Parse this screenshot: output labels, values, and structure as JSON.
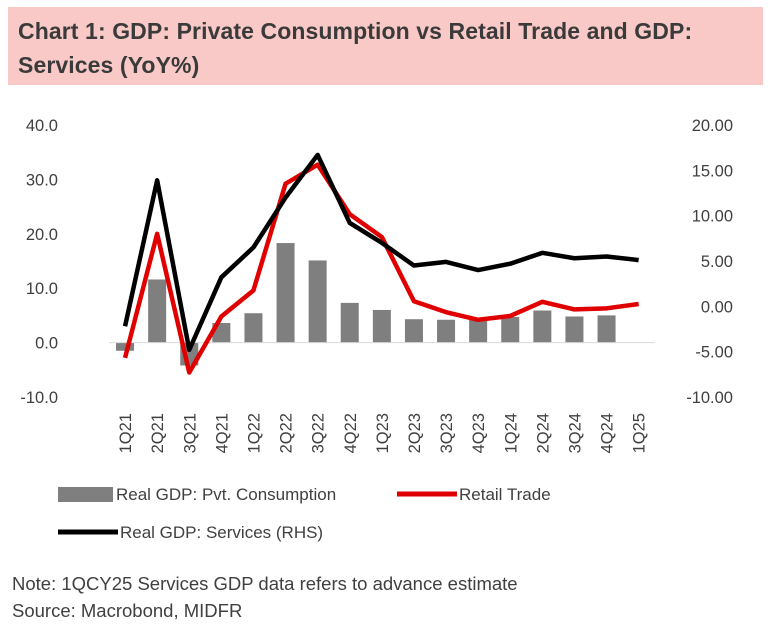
{
  "title": "Chart 1: GDP: Private Consumption vs Retail Trade and GDP: Services (YoY%)",
  "chart_data": {
    "type": "bar",
    "categories": [
      "1Q21",
      "2Q21",
      "3Q21",
      "4Q21",
      "1Q22",
      "2Q22",
      "3Q22",
      "4Q22",
      "1Q23",
      "2Q23",
      "3Q23",
      "4Q23",
      "1Q24",
      "2Q24",
      "3Q24",
      "4Q24",
      "1Q25"
    ],
    "series": [
      {
        "name": "Real GDP: Pvt. Consumption",
        "type": "bar",
        "axis": "left",
        "color": "#7f7f7f",
        "values": [
          -1.5,
          11.6,
          -4.2,
          3.6,
          5.4,
          18.3,
          15.1,
          7.3,
          6.0,
          4.3,
          4.2,
          4.5,
          4.7,
          5.9,
          4.8,
          5.0,
          null
        ]
      },
      {
        "name": "Retail Trade",
        "type": "line",
        "axis": "left",
        "color": "#e00000",
        "values": [
          -2.8,
          20.0,
          -5.5,
          4.8,
          9.6,
          29.2,
          32.7,
          23.6,
          19.4,
          7.6,
          5.6,
          4.2,
          4.9,
          7.5,
          6.1,
          6.3,
          7.1
        ]
      },
      {
        "name": "Real GDP: Services (RHS)",
        "type": "line",
        "axis": "right",
        "color": "#000000",
        "values": [
          -2.2,
          13.9,
          -4.8,
          3.2,
          6.5,
          12.0,
          16.7,
          9.2,
          7.0,
          4.5,
          4.9,
          4.0,
          4.7,
          5.9,
          5.3,
          5.5,
          5.1
        ]
      }
    ],
    "ylim_left": [
      -10,
      40
    ],
    "yticks_left": [
      "40.0",
      "30.0",
      "20.0",
      "10.0",
      "0.0",
      "-10.0"
    ],
    "ylim_right": [
      -10,
      20
    ],
    "yticks_right": [
      "20.00",
      "15.00",
      "10.00",
      "5.00",
      "0.00",
      "-5.00",
      "-10.00"
    ],
    "xlabel": "",
    "ylabel": "",
    "grid": false,
    "legend_position": "bottom"
  },
  "legend": {
    "bar_label": "Real GDP: Pvt. Consumption",
    "retail_label": "Retail Trade",
    "services_label": "Real GDP: Services (RHS)"
  },
  "footer": {
    "note": "Note: 1QCY25 Services GDP data refers to advance estimate",
    "source": "Source: Macrobond, MIDFR"
  }
}
